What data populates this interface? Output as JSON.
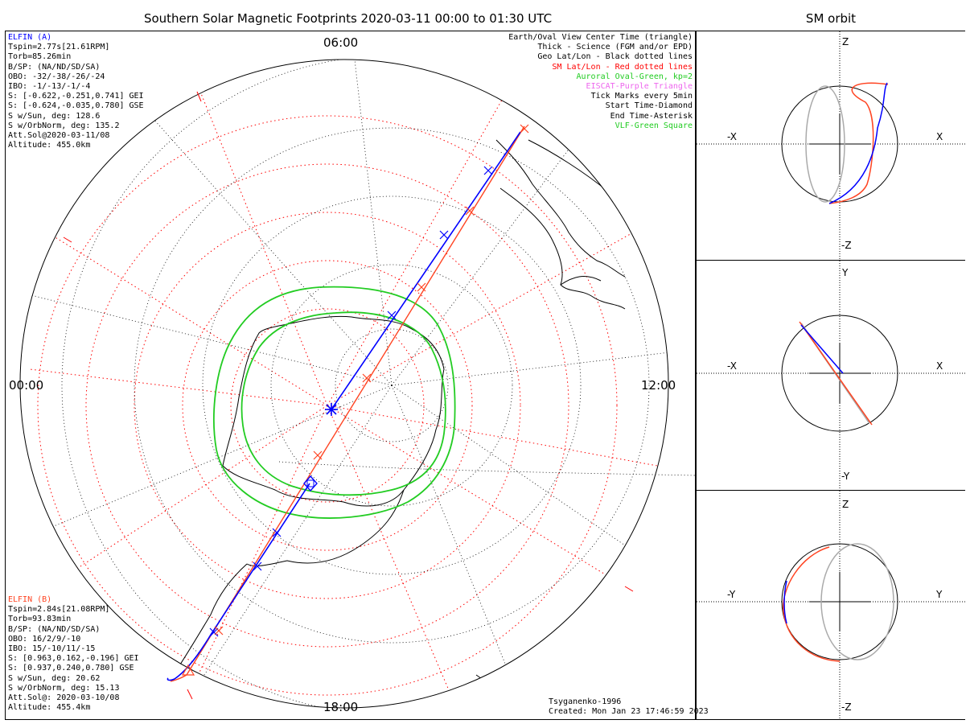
{
  "title": "Southern Solar Magnetic Footprints 2020-03-11 00:00 to 01:30 UTC",
  "orbit_title": "SM orbit",
  "clock_labels": {
    "top": "06:00",
    "left": "00:00",
    "right": "12:00",
    "bottom": "18:00"
  },
  "elfin_a": {
    "name": "ELFIN (A)",
    "lines": [
      "Tspin=2.77s[21.61RPM]",
      "Torb=85.26min",
      "B/SP: (NA/ND/SD/SA)",
      "OBO: -32/-38/-26/-24",
      "IBO: -1/-13/-1/-4",
      "S: [-0.622,-0.251,0.741] GEI",
      "S: [-0.624,-0.035,0.780] GSE",
      "S w/Sun, deg: 128.6",
      "S w/OrbNorm, deg: 135.2",
      "Att.Sol@2020-03-11/08",
      "Altitude: 455.0km"
    ]
  },
  "elfin_b": {
    "name": "ELFIN (B)",
    "lines": [
      "Tspin=2.84s[21.08RPM]",
      "Torb=93.83min",
      "B/SP: (NA/ND/SD/SA)",
      "OBO: 16/2/9/-10",
      "IBO: 15/-10/11/-15",
      "S: [0.963,0.162,-0.196] GEI",
      "S: [0.937,0.240,0.780] GSE",
      "S w/Sun, deg: 20.62",
      "S w/OrbNorm, deg: 15.13",
      "Att.Sol@: 2020-03-10/08",
      "Altitude: 455.4km"
    ]
  },
  "legend": [
    {
      "text": "Earth/Oval View Center Time (triangle)",
      "color": "#000000"
    },
    {
      "text": "Thick - Science (FGM and/or EPD)",
      "color": "#000000"
    },
    {
      "text": "Geo Lat/Lon - Black dotted lines",
      "color": "#000000"
    },
    {
      "text": "SM Lat/Lon - Red dotted lines",
      "color": "#ff0000"
    },
    {
      "text": "Auroral Oval-Green, kp=2",
      "color": "#22cc22"
    },
    {
      "text": "EISCAT-Purple Triangle",
      "color": "#ee66ee"
    },
    {
      "text": "Tick Marks every 5min",
      "color": "#000000"
    },
    {
      "text": "Start Time-Diamond",
      "color": "#000000"
    },
    {
      "text": "End Time-Asterisk",
      "color": "#000000"
    },
    {
      "text": "VLF-Green Square",
      "color": "#22cc22"
    }
  ],
  "credits": {
    "model": "Tsyganenko-1996",
    "created": "Created: Mon Jan 23 17:46:59 2023"
  },
  "orbit_panels": [
    {
      "top": "Z",
      "bottom": "-Z",
      "left": "-X",
      "right": "X"
    },
    {
      "top": "Y",
      "bottom": "-Y",
      "left": "-X",
      "right": "X"
    },
    {
      "top": "Z",
      "bottom": "-Z",
      "left": "-Y",
      "right": "Y"
    }
  ],
  "colors": {
    "elfin_a": "#0000ff",
    "elfin_b": "#ff4422",
    "oval": "#22cc22",
    "sm_grid": "#ff0000",
    "geo_grid": "#000000"
  }
}
